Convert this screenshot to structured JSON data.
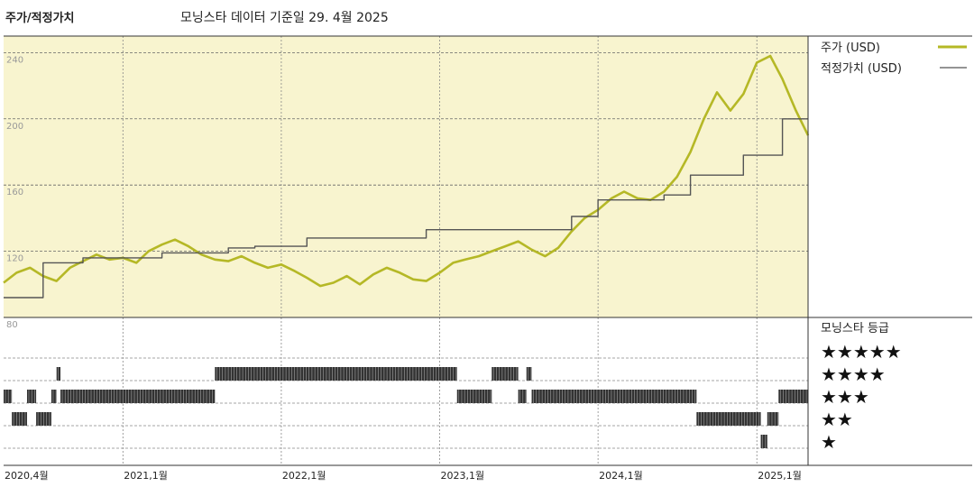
{
  "header": {
    "title": "주가/적정가치",
    "subtitle": "모닝스타 데이터 기준일 29. 4월 2025"
  },
  "colors": {
    "price": "#b5b826",
    "fair_value": "#555555",
    "plot_bg": "#f8f4cf",
    "grid": "#888888",
    "bar": "#333333"
  },
  "chart_data": {
    "type": "line",
    "xlabel": "",
    "ylabel": "",
    "x_range": [
      "2020-04-01",
      "2025-04-29"
    ],
    "ylim": [
      80,
      250
    ],
    "y_ticks": [
      80,
      120,
      160,
      200,
      240
    ],
    "x_ticks": [
      {
        "date": "2020-04-01",
        "label": "2020,4월"
      },
      {
        "date": "2021-01-01",
        "label": "2021,1월"
      },
      {
        "date": "2022-01-01",
        "label": "2022,1월"
      },
      {
        "date": "2023-01-01",
        "label": "2023,1월"
      },
      {
        "date": "2024-01-01",
        "label": "2024,1월"
      },
      {
        "date": "2025-01-01",
        "label": "2025,1월"
      }
    ],
    "grid": "dashed",
    "legend_position": "right",
    "series": [
      {
        "name": "주가 (USD)",
        "style": "price",
        "points": [
          [
            "2020-04-01",
            101
          ],
          [
            "2020-05-01",
            107
          ],
          [
            "2020-06-01",
            110
          ],
          [
            "2020-07-01",
            105
          ],
          [
            "2020-08-01",
            102
          ],
          [
            "2020-09-01",
            110
          ],
          [
            "2020-10-01",
            114
          ],
          [
            "2020-11-01",
            118
          ],
          [
            "2020-12-01",
            115
          ],
          [
            "2021-01-01",
            116
          ],
          [
            "2021-02-01",
            113
          ],
          [
            "2021-03-01",
            120
          ],
          [
            "2021-04-01",
            124
          ],
          [
            "2021-05-01",
            127
          ],
          [
            "2021-06-01",
            123
          ],
          [
            "2021-07-01",
            118
          ],
          [
            "2021-08-01",
            115
          ],
          [
            "2021-09-01",
            114
          ],
          [
            "2021-10-01",
            117
          ],
          [
            "2021-11-01",
            113
          ],
          [
            "2021-12-01",
            110
          ],
          [
            "2022-01-01",
            112
          ],
          [
            "2022-02-01",
            108
          ],
          [
            "2022-03-01",
            104
          ],
          [
            "2022-04-01",
            99
          ],
          [
            "2022-05-01",
            101
          ],
          [
            "2022-06-01",
            105
          ],
          [
            "2022-07-01",
            100
          ],
          [
            "2022-08-01",
            106
          ],
          [
            "2022-09-01",
            110
          ],
          [
            "2022-10-01",
            107
          ],
          [
            "2022-11-01",
            103
          ],
          [
            "2022-12-01",
            102
          ],
          [
            "2023-01-01",
            107
          ],
          [
            "2023-02-01",
            113
          ],
          [
            "2023-03-01",
            115
          ],
          [
            "2023-04-01",
            117
          ],
          [
            "2023-05-01",
            120
          ],
          [
            "2023-06-01",
            123
          ],
          [
            "2023-07-01",
            126
          ],
          [
            "2023-08-01",
            121
          ],
          [
            "2023-09-01",
            117
          ],
          [
            "2023-10-01",
            122
          ],
          [
            "2023-11-01",
            132
          ],
          [
            "2023-12-01",
            140
          ],
          [
            "2024-01-01",
            145
          ],
          [
            "2024-02-01",
            152
          ],
          [
            "2024-03-01",
            156
          ],
          [
            "2024-04-01",
            152
          ],
          [
            "2024-05-01",
            151
          ],
          [
            "2024-06-01",
            156
          ],
          [
            "2024-07-01",
            165
          ],
          [
            "2024-08-01",
            180
          ],
          [
            "2024-09-01",
            200
          ],
          [
            "2024-10-01",
            216
          ],
          [
            "2024-11-01",
            205
          ],
          [
            "2024-12-01",
            215
          ],
          [
            "2025-01-01",
            234
          ],
          [
            "2025-02-01",
            238
          ],
          [
            "2025-03-01",
            224
          ],
          [
            "2025-04-01",
            205
          ],
          [
            "2025-04-29",
            190
          ]
        ]
      },
      {
        "name": "적정가치 (USD)",
        "style": "fair_value",
        "points": [
          [
            "2020-04-01",
            92
          ],
          [
            "2020-07-01",
            92
          ],
          [
            "2020-07-01",
            113
          ],
          [
            "2020-10-01",
            113
          ],
          [
            "2020-10-01",
            116
          ],
          [
            "2021-04-01",
            116
          ],
          [
            "2021-04-01",
            119
          ],
          [
            "2021-09-01",
            119
          ],
          [
            "2021-09-01",
            122
          ],
          [
            "2021-11-01",
            122
          ],
          [
            "2021-11-01",
            123
          ],
          [
            "2022-03-01",
            123
          ],
          [
            "2022-03-01",
            128
          ],
          [
            "2022-12-01",
            128
          ],
          [
            "2022-12-01",
            133
          ],
          [
            "2023-11-01",
            133
          ],
          [
            "2023-11-01",
            141
          ],
          [
            "2024-01-01",
            141
          ],
          [
            "2024-01-01",
            151
          ],
          [
            "2024-06-01",
            151
          ],
          [
            "2024-06-01",
            154
          ],
          [
            "2024-08-01",
            154
          ],
          [
            "2024-08-01",
            166
          ],
          [
            "2024-12-01",
            166
          ],
          [
            "2024-12-01",
            178
          ],
          [
            "2025-03-01",
            178
          ],
          [
            "2025-03-01",
            200
          ],
          [
            "2025-04-29",
            200
          ]
        ]
      }
    ],
    "rating_panel": {
      "title": "모닝스타 등급",
      "levels": [
        {
          "stars": 5,
          "label": "★★★★★"
        },
        {
          "stars": 4,
          "label": "★★★★"
        },
        {
          "stars": 3,
          "label": "★★★"
        },
        {
          "stars": 2,
          "label": "★★"
        },
        {
          "stars": 1,
          "label": "★"
        }
      ],
      "history": [
        {
          "start": "2020-04-01",
          "end": "2020-04-20",
          "stars": 3
        },
        {
          "start": "2020-04-20",
          "end": "2020-05-25",
          "stars": 2
        },
        {
          "start": "2020-05-25",
          "end": "2020-06-15",
          "stars": 3
        },
        {
          "start": "2020-06-15",
          "end": "2020-07-20",
          "stars": 2
        },
        {
          "start": "2020-07-20",
          "end": "2020-08-01",
          "stars": 3
        },
        {
          "start": "2020-08-01",
          "end": "2020-08-10",
          "stars": 4
        },
        {
          "start": "2020-08-10",
          "end": "2021-08-01",
          "stars": 3
        },
        {
          "start": "2021-08-01",
          "end": "2023-02-10",
          "stars": 4
        },
        {
          "start": "2023-02-10",
          "end": "2023-05-01",
          "stars": 3
        },
        {
          "start": "2023-05-01",
          "end": "2023-07-01",
          "stars": 4
        },
        {
          "start": "2023-07-01",
          "end": "2023-07-20",
          "stars": 3
        },
        {
          "start": "2023-07-20",
          "end": "2023-08-01",
          "stars": 4
        },
        {
          "start": "2023-08-01",
          "end": "2024-08-15",
          "stars": 3
        },
        {
          "start": "2024-08-15",
          "end": "2025-01-10",
          "stars": 2
        },
        {
          "start": "2025-01-10",
          "end": "2025-01-25",
          "stars": 1
        },
        {
          "start": "2025-01-25",
          "end": "2025-02-20",
          "stars": 2
        },
        {
          "start": "2025-02-20",
          "end": "2025-04-29",
          "stars": 3
        }
      ]
    }
  }
}
